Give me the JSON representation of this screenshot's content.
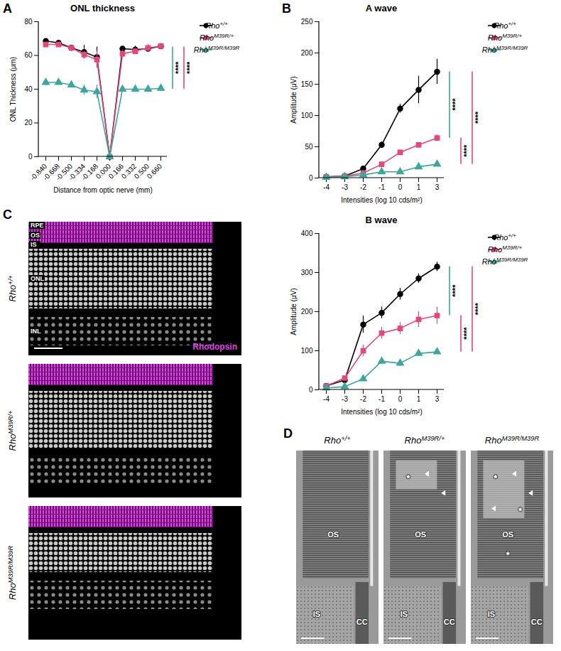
{
  "chart_data": [
    {
      "panel": "A",
      "type": "line",
      "title": "ONL thickness",
      "x_label": "Distance from optic nerve (mm)",
      "y_label": "ONL Thickness (μm)",
      "categories": [
        "-0.840",
        "-0.668",
        "-0.500",
        "-0.334",
        "-0.168",
        "0.000",
        "0.166",
        "0.332",
        "0.500",
        "0.660"
      ],
      "ylim": [
        0,
        80
      ],
      "yticks": [
        0,
        20,
        40,
        60,
        80
      ],
      "legend": "right",
      "series": [
        {
          "name": "Rho+/+",
          "color": "#000000",
          "marker": "circle",
          "line_style": "solid",
          "values": [
            68.5,
            67.5,
            64.5,
            62,
            59,
            0,
            64,
            63.5,
            64,
            65.5
          ],
          "errors": [
            0.8,
            1,
            0.8,
            4,
            6,
            0,
            1.5,
            2,
            1.5,
            1
          ]
        },
        {
          "name": "RhoM39R/+",
          "color": "#e8457a",
          "marker": "square",
          "line_style": "solid",
          "values": [
            66.5,
            66.5,
            64.5,
            60.5,
            57.5,
            0,
            61,
            62.5,
            64.5,
            65.5
          ],
          "errors": [
            1,
            1,
            1,
            2,
            5,
            0,
            2,
            1.5,
            2,
            1.5
          ]
        },
        {
          "name": "RhoM39R/M39R",
          "color": "#3aa89a",
          "marker": "triangle",
          "line_style": "solid",
          "values": [
            44,
            44,
            42.5,
            39.5,
            38.5,
            0,
            40,
            40,
            40,
            40.5
          ],
          "errors": [
            2,
            1,
            1,
            3,
            4,
            0,
            1.5,
            1,
            1,
            1.5
          ]
        }
      ],
      "annotations": [
        {
          "text": "****",
          "color": "#3aa89a",
          "y": [
            40,
            65
          ]
        },
        {
          "text": "****",
          "color": "#e8457a",
          "y": [
            40,
            65
          ]
        }
      ]
    },
    {
      "panel": "B",
      "type": "line",
      "title": "A wave",
      "x_label": "Intensities (log 10 cds/m²)",
      "y_label": "Amplitude (μV)",
      "categories": [
        -4,
        -3,
        -2,
        -1,
        0,
        1,
        3
      ],
      "ylim": [
        0,
        250
      ],
      "yticks": [
        0,
        50,
        100,
        150,
        200,
        250
      ],
      "legend": "right",
      "series": [
        {
          "name": "Rho+/+",
          "color": "#000000",
          "marker": "circle",
          "line_style": "solid",
          "values": [
            2,
            3,
            15,
            53,
            111,
            141,
            170
          ],
          "errors": [
            1,
            1,
            3,
            5,
            7,
            22,
            20
          ]
        },
        {
          "name": "RhoM39R/+",
          "color": "#e8457a",
          "marker": "square",
          "line_style": "solid",
          "values": [
            2,
            3,
            8,
            22,
            41,
            53,
            64
          ],
          "errors": [
            1,
            1,
            2,
            3,
            3,
            4,
            5
          ]
        },
        {
          "name": "RhoM39R/M39R",
          "color": "#3aa89a",
          "marker": "triangle",
          "line_style": "solid",
          "values": [
            1,
            2,
            5,
            10,
            10,
            18,
            22
          ],
          "errors": [
            1,
            1,
            1,
            1,
            1,
            2,
            2
          ]
        }
      ],
      "annotations": [
        {
          "text": "****",
          "color": "#3aa89a",
          "y": [
            64,
            170
          ]
        },
        {
          "text": "****",
          "color": "#e8457a",
          "y": [
            22,
            64
          ]
        },
        {
          "text": "****",
          "color": "#e8457a",
          "y": [
            22,
            170
          ]
        }
      ]
    },
    {
      "type": "line",
      "title": "B wave",
      "x_label": "Intensities (log 10 cds/m²)",
      "y_label": "Amplitude (μV)",
      "categories": [
        -4,
        -3,
        -2,
        -1,
        0,
        1,
        3
      ],
      "ylim": [
        0,
        400
      ],
      "yticks": [
        0,
        100,
        200,
        300,
        400
      ],
      "legend": "right",
      "series": [
        {
          "name": "Rho+/+",
          "color": "#000000",
          "marker": "circle",
          "line_style": "solid",
          "values": [
            10,
            25,
            167,
            197,
            245,
            285,
            315
          ],
          "errors": [
            2,
            3,
            22,
            15,
            15,
            12,
            12
          ]
        },
        {
          "name": "RhoM39R/+",
          "color": "#e8457a",
          "marker": "square",
          "line_style": "solid",
          "values": [
            10,
            30,
            100,
            145,
            157,
            180,
            190
          ],
          "errors": [
            2,
            3,
            15,
            15,
            15,
            20,
            22
          ]
        },
        {
          "name": "RhoM39R/M39R",
          "color": "#3aa89a",
          "marker": "triangle",
          "line_style": "solid",
          "values": [
            5,
            8,
            28,
            73,
            68,
            93,
            97
          ],
          "errors": [
            1,
            1,
            4,
            8,
            8,
            6,
            6
          ]
        }
      ],
      "annotations": [
        {
          "text": "****",
          "color": "#3aa89a",
          "y": [
            190,
            315
          ]
        },
        {
          "text": "****",
          "color": "#e8457a",
          "y": [
            97,
            190
          ]
        },
        {
          "text": "****",
          "color": "#e8457a",
          "y": [
            97,
            315
          ]
        }
      ]
    }
  ],
  "image_panels": [
    {
      "panel": "C",
      "stain": "Rhodopsin",
      "layers": [
        "RPE",
        "OS",
        "IS",
        "ONL",
        "INL"
      ],
      "rows": [
        "Rho+/+",
        "RhoM39R/+",
        "RhoM39R/M39R"
      ]
    },
    {
      "panel": "D",
      "images": [
        {
          "title": "Rho+/+",
          "labels": [
            "OS",
            "IS",
            "CC"
          ],
          "marks": []
        },
        {
          "title": "RhoM39R/+",
          "labels": [
            "OS",
            "IS",
            "CC"
          ],
          "marks": [
            "*"
          ]
        },
        {
          "title": "RhoM39R/M39R",
          "labels": [
            "OS",
            "IS",
            "CC"
          ],
          "marks": [
            "*",
            "*",
            "*"
          ]
        }
      ]
    }
  ]
}
